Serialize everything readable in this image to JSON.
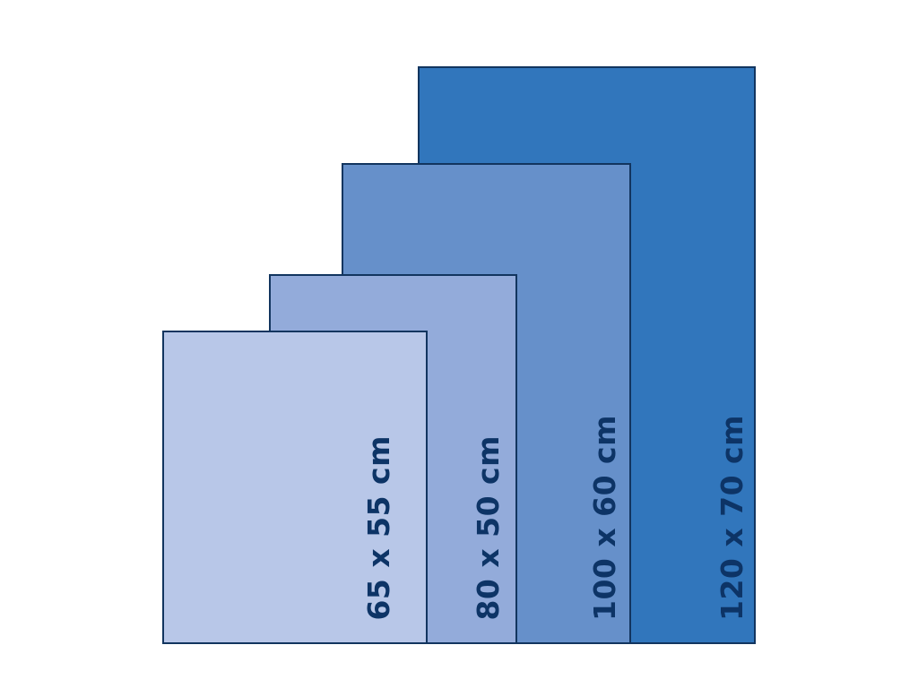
{
  "sizes": [
    {
      "label": "120 x 70 cm",
      "color": "#3176bc"
    },
    {
      "label": "100 x 60 cm",
      "color": "#6690ca"
    },
    {
      "label": "80 x 50 cm",
      "color": "#93abda"
    },
    {
      "label": "65 x 55 cm",
      "color": "#b8c7e8"
    }
  ],
  "text_color": "#0d3466",
  "border_color": "#12355f"
}
